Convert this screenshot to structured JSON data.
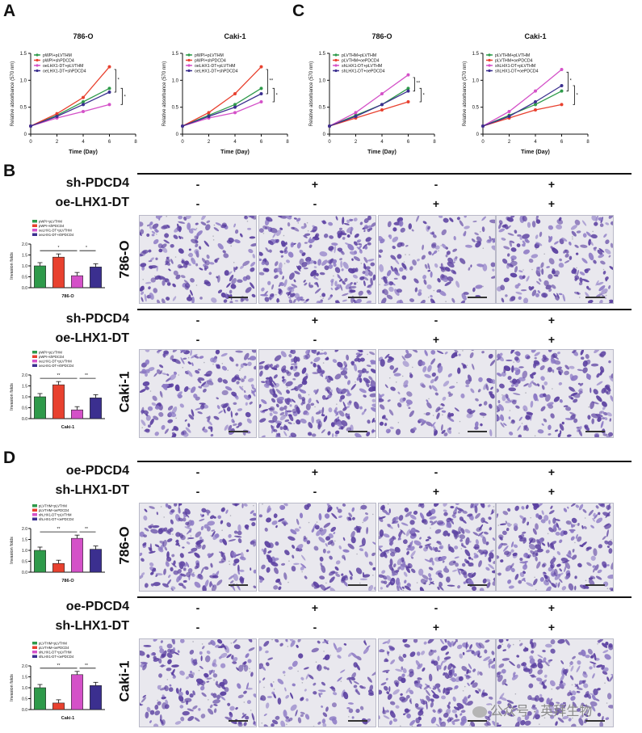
{
  "panel_letters": {
    "A": "A",
    "B": "B",
    "C": "C",
    "D": "D"
  },
  "watermark": "公众号 · 英拜生物",
  "chart_data": [
    {
      "type": "line",
      "title": "786-O",
      "xlabel": "Time (Day)",
      "ylabel": "Relative absorbance (570 nm)",
      "x": [
        0,
        2,
        4,
        6
      ],
      "xlim": [
        0,
        8
      ],
      "ylim": [
        0,
        1.5
      ],
      "xticks": [
        "0",
        "2",
        "4",
        "6",
        "8"
      ],
      "yticks": [
        "0",
        "0.5",
        "1.0",
        "1.5"
      ],
      "legend": "top-left",
      "series": [
        {
          "name": "pWPI+pLVTHM",
          "color": "#2e9a4a",
          "values": [
            0.15,
            0.35,
            0.6,
            0.85
          ]
        },
        {
          "name": "pWPI+shPDCD4",
          "color": "#e8412f",
          "values": [
            0.15,
            0.38,
            0.68,
            1.25
          ]
        },
        {
          "name": "oeLHX1-DT+pLVTHM",
          "color": "#d451c8",
          "values": [
            0.15,
            0.3,
            0.42,
            0.55
          ]
        },
        {
          "name": "oeLHX1-DT+shPDCD4",
          "color": "#3b2f8f",
          "values": [
            0.15,
            0.33,
            0.55,
            0.78
          ]
        }
      ],
      "annotations": [
        "*",
        "*"
      ]
    },
    {
      "type": "line",
      "title": "Caki-1",
      "xlabel": "Time (Day)",
      "ylabel": "Relative absorbance (570 nm)",
      "x": [
        0,
        2,
        4,
        6
      ],
      "xlim": [
        0,
        8
      ],
      "ylim": [
        0,
        1.5
      ],
      "xticks": [
        "0",
        "2",
        "4",
        "6",
        "8"
      ],
      "yticks": [
        "0",
        "0.5",
        "1.0",
        "1.5"
      ],
      "legend": "top-left",
      "series": [
        {
          "name": "pWPI+pLVTHM",
          "color": "#2e9a4a",
          "values": [
            0.15,
            0.35,
            0.55,
            0.85
          ]
        },
        {
          "name": "pWPI+shPDCD4",
          "color": "#e8412f",
          "values": [
            0.15,
            0.4,
            0.75,
            1.25
          ]
        },
        {
          "name": "oeLHX1-DT+pLVTHM",
          "color": "#d451c8",
          "values": [
            0.15,
            0.3,
            0.4,
            0.6
          ]
        },
        {
          "name": "oeLHX1-DT+shPDCD4",
          "color": "#3b2f8f",
          "values": [
            0.15,
            0.33,
            0.5,
            0.75
          ]
        }
      ],
      "annotations": [
        "**",
        "*"
      ]
    },
    {
      "type": "line",
      "title": "786-O",
      "xlabel": "Time (Day)",
      "ylabel": "Relative absorbance (570 nm)",
      "x": [
        0,
        2,
        4,
        6
      ],
      "xlim": [
        0,
        8
      ],
      "ylim": [
        0,
        1.5
      ],
      "xticks": [
        "0",
        "2",
        "4",
        "6",
        "8"
      ],
      "yticks": [
        "0",
        "0.5",
        "1.0",
        "1.5"
      ],
      "legend": "top-left",
      "series": [
        {
          "name": "pLVTHM+pLVTHM",
          "color": "#2e9a4a",
          "values": [
            0.15,
            0.35,
            0.55,
            0.85
          ]
        },
        {
          "name": "pLVTHM+oePDCD4",
          "color": "#e8412f",
          "values": [
            0.15,
            0.3,
            0.45,
            0.6
          ]
        },
        {
          "name": "shLHX1-DT+pLVTHM",
          "color": "#d451c8",
          "values": [
            0.15,
            0.4,
            0.75,
            1.1
          ]
        },
        {
          "name": "shLHX1-DT+oePDCD4",
          "color": "#3b2f8f",
          "values": [
            0.15,
            0.33,
            0.55,
            0.8
          ]
        }
      ],
      "annotations": [
        "**",
        "*"
      ]
    },
    {
      "type": "line",
      "title": "Caki-1",
      "xlabel": "Time (Day)",
      "ylabel": "Relative absorbance (570 nm)",
      "x": [
        0,
        2,
        4,
        6
      ],
      "xlim": [
        0,
        8
      ],
      "ylim": [
        0,
        1.5
      ],
      "xticks": [
        "0",
        "2",
        "4",
        "6",
        "8"
      ],
      "yticks": [
        "0",
        "0.5",
        "1.0",
        "1.5"
      ],
      "legend": "top-left",
      "series": [
        {
          "name": "pLVTHM+pLVTHM",
          "color": "#2e9a4a",
          "values": [
            0.15,
            0.35,
            0.55,
            0.8
          ]
        },
        {
          "name": "pLVTHM+oePDCD4",
          "color": "#e8412f",
          "values": [
            0.15,
            0.3,
            0.45,
            0.55
          ]
        },
        {
          "name": "shLHX1-DT+pLVTHM",
          "color": "#d451c8",
          "values": [
            0.15,
            0.42,
            0.8,
            1.2
          ]
        },
        {
          "name": "shLHX1-DT+oePDCD4",
          "color": "#3b2f8f",
          "values": [
            0.15,
            0.33,
            0.6,
            0.9
          ]
        }
      ],
      "annotations": [
        "*",
        "*"
      ]
    },
    {
      "type": "bar",
      "title": "",
      "xlabel": "786-O",
      "ylabel": "Invasion folds",
      "categories": [
        "pWPI+pLVTHM",
        "pWPI+shPDCD4",
        "oeLHX1-DT+pLVTHM",
        "oeLHX1-DT+shPDCD4"
      ],
      "colors": [
        "#2e9a4a",
        "#e8412f",
        "#d451c8",
        "#3b2f8f"
      ],
      "values": [
        1.0,
        1.4,
        0.55,
        0.95
      ],
      "ylim": [
        0,
        2
      ],
      "yticks": [
        "0.0",
        "0.5",
        "1.0",
        "1.5",
        "2.0"
      ],
      "annotations": [
        "*",
        "*"
      ]
    },
    {
      "type": "bar",
      "title": "",
      "xlabel": "Caki-1",
      "ylabel": "Invasion folds",
      "categories": [
        "pWPI+pLVTHM",
        "pWPI+shPDCD4",
        "oeLHX1-DT+pLVTHM",
        "oeLHX1-DT+shPDCD4"
      ],
      "colors": [
        "#2e9a4a",
        "#e8412f",
        "#d451c8",
        "#3b2f8f"
      ],
      "values": [
        1.0,
        1.55,
        0.4,
        0.95
      ],
      "ylim": [
        0,
        2
      ],
      "yticks": [
        "0.0",
        "0.5",
        "1.0",
        "1.5",
        "2.0"
      ],
      "annotations": [
        "**",
        "**"
      ]
    },
    {
      "type": "bar",
      "title": "",
      "xlabel": "786-O",
      "ylabel": "Invasion folds",
      "categories": [
        "pLVTHM+pLVTHM",
        "pLVTHM+oePDCD4",
        "shLHX1-DT+pLVTHM",
        "shLHX1-DT+oePDCD4"
      ],
      "colors": [
        "#2e9a4a",
        "#e8412f",
        "#d451c8",
        "#3b2f8f"
      ],
      "values": [
        1.0,
        0.4,
        1.55,
        1.05
      ],
      "ylim": [
        0,
        2
      ],
      "yticks": [
        "0.0",
        "0.5",
        "1.0",
        "1.5",
        "2.0"
      ],
      "annotations": [
        "**",
        "**"
      ]
    },
    {
      "type": "bar",
      "title": "",
      "xlabel": "Caki-1",
      "ylabel": "Invasion folds",
      "categories": [
        "pLVTHM+pLVTHM",
        "pLVTHM+oePDCD4",
        "shLHX1-DT+pLVTHM",
        "shLHX1-DT+oePDCD4"
      ],
      "colors": [
        "#2e9a4a",
        "#e8412f",
        "#d451c8",
        "#3b2f8f"
      ],
      "values": [
        1.0,
        0.3,
        1.6,
        1.1
      ],
      "ylim": [
        0,
        2
      ],
      "yticks": [
        "0.0",
        "0.5",
        "1.0",
        "1.5",
        "2.0"
      ],
      "annotations": [
        "**",
        "**"
      ]
    }
  ],
  "panel_b": {
    "rows": [
      {
        "t1": "sh-PDCD4",
        "s1": [
          "-",
          "+",
          "-",
          "+"
        ],
        "t2": "oe-LHX1-DT",
        "s2": [
          "-",
          "-",
          "+",
          "+"
        ],
        "cell": "786-O"
      },
      {
        "t1": "sh-PDCD4",
        "s1": [
          "-",
          "+",
          "-",
          "+"
        ],
        "t2": "oe-LHX1-DT",
        "s2": [
          "-",
          "-",
          "+",
          "+"
        ],
        "cell": "Caki-1"
      }
    ]
  },
  "panel_d": {
    "rows": [
      {
        "t1": "oe-PDCD4",
        "s1": [
          "-",
          "+",
          "-",
          "+"
        ],
        "t2": "sh-LHX1-DT",
        "s2": [
          "-",
          "-",
          "+",
          "+"
        ],
        "cell": "786-O"
      },
      {
        "t1": "oe-PDCD4",
        "s1": [
          "-",
          "+",
          "-",
          "+"
        ],
        "t2": "sh-LHX1-DT",
        "s2": [
          "-",
          "-",
          "+",
          "+"
        ],
        "cell": "Caki-1"
      }
    ]
  },
  "micro_density": [
    [
      0.6,
      0.9,
      0.4,
      0.55
    ],
    [
      0.6,
      0.95,
      0.35,
      0.65
    ],
    [
      0.7,
      0.4,
      0.95,
      0.7
    ],
    [
      0.55,
      0.3,
      0.75,
      0.6
    ]
  ],
  "colors": {
    "stain": "#5a3fa0",
    "stain_light": "#8b78c4",
    "field": "#e9e8ee"
  }
}
